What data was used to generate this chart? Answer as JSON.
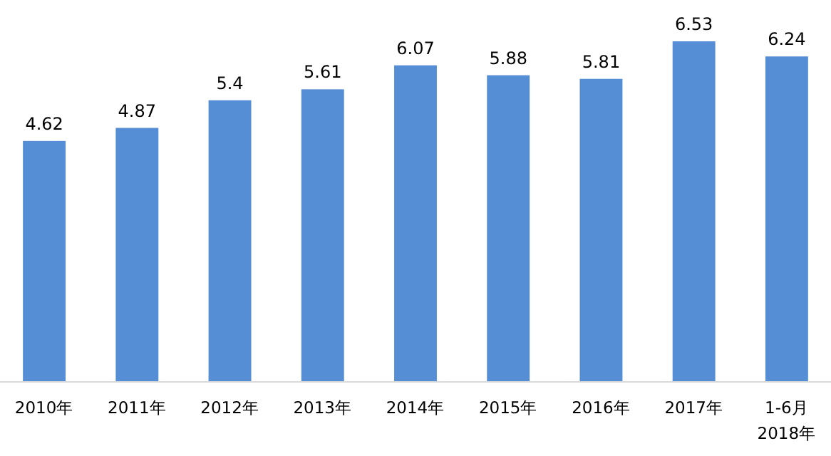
{
  "chart_data": {
    "type": "bar",
    "categories": [
      "2010年",
      "2011年",
      "2012年",
      "2013年",
      "2014年",
      "2015年",
      "2016年",
      "2017年",
      "1-6月 2018年"
    ],
    "values": [
      4.62,
      4.87,
      5.4,
      5.61,
      6.07,
      5.88,
      5.81,
      6.53,
      6.24
    ],
    "color": "#558ed5",
    "data_labels": true
  }
}
